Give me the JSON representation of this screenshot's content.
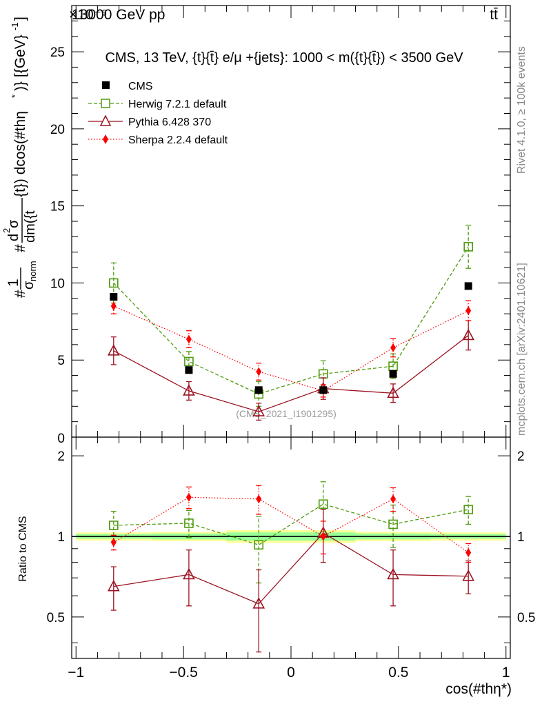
{
  "header": {
    "energy_label": "13000 GeV pp",
    "process_label": "tt̄",
    "exponent_label": "×10⁻⁶"
  },
  "side_labels": {
    "rivet": "Rivet 4.1.0, ≥ 100k events",
    "mcplots": "mcplots.cern.ch [arXiv:2401.10621]"
  },
  "chart_data": [
    {
      "type": "scatter",
      "title": "CMS, 13 TeV, {t}{t̄} e/μ +{jets}: 1000 < m({t}{t̄}) < 3500 GeV",
      "ylabel": "#1/σnorm #d²σ/dm({t}{t̄}) dcos(#thη*) [{GeV}⁻¹]",
      "ylabel_parts": {
        "hash1": "#",
        "one": "1",
        "sigma": "σ",
        "norm": "norm",
        "hash2": "#",
        "d": "d",
        "two": "2",
        "sigma2": "σ",
        "dm": "dm({t",
        "rest": "{t}) dcos(#thη",
        "star": "*",
        "unit": ")} [{GeV}",
        "exp": "-1",
        "close": "]"
      },
      "ylim": [
        0,
        28
      ],
      "xlim": [
        -1.02,
        1.02
      ],
      "y_ticks": [
        "5",
        "10",
        "15",
        "20",
        "25"
      ],
      "y_zero_label": "0",
      "watermark": "(CMS_2021_I1901295)",
      "x": [
        -0.825,
        -0.475,
        -0.15,
        0.15,
        0.475,
        0.825
      ],
      "series": [
        {
          "name": "CMS",
          "color": "#000000",
          "marker": "filled-square",
          "line": "none",
          "values": [
            9.1,
            4.35,
            3.05,
            3.05,
            4.1,
            9.8
          ]
        },
        {
          "name": "Herwig 7.2.1 default",
          "color": "#4f9a0e",
          "marker": "open-square",
          "line": "dashed",
          "values": [
            10.0,
            4.9,
            2.8,
            4.1,
            4.6,
            12.35
          ],
          "errors": [
            1.3,
            0.65,
            0.8,
            0.85,
            0.8,
            1.4
          ]
        },
        {
          "name": "Pythia 6.428 370",
          "color": "#9b1321",
          "marker": "open-triangle",
          "line": "solid",
          "values": [
            5.6,
            3.0,
            1.65,
            3.15,
            2.85,
            6.6
          ],
          "errors": [
            0.9,
            0.6,
            0.55,
            0.7,
            0.6,
            0.95
          ]
        },
        {
          "name": "Sherpa 2.2.4 default",
          "color": "#ff0000",
          "marker": "filled-diamond",
          "line": "dotted",
          "values": [
            8.5,
            6.35,
            4.25,
            3.0,
            5.8,
            8.2
          ],
          "errors": [
            0.5,
            0.55,
            0.55,
            0.4,
            0.6,
            0.65
          ]
        }
      ]
    },
    {
      "type": "scatter",
      "title": "",
      "xlabel": "cos(#thη*)",
      "ylabel": "Ratio to CMS",
      "ylim": [
        0.35,
        2.35
      ],
      "xlim": [
        -1.02,
        1.02
      ],
      "x_ticks": [
        "−1",
        "−0.5",
        "0",
        "0.5",
        "1"
      ],
      "y_ticks": [
        "0.5",
        "1",
        "2"
      ],
      "x": [
        -0.825,
        -0.475,
        -0.15,
        0.15,
        0.475,
        0.825
      ],
      "series": [
        {
          "name": "Herwig 7.2.1 default",
          "color": "#4f9a0e",
          "values": [
            1.1,
            1.12,
            0.93,
            1.32,
            1.11,
            1.26
          ],
          "errors": [
            0.14,
            0.13,
            0.26,
            0.28,
            0.2,
            0.15
          ]
        },
        {
          "name": "Pythia 6.428 370",
          "color": "#9b1321",
          "values": [
            0.65,
            0.72,
            0.56,
            1.03,
            0.72,
            0.71
          ],
          "errors": [
            0.12,
            0.17,
            0.19,
            0.23,
            0.17,
            0.1
          ]
        },
        {
          "name": "Sherpa 2.2.4 default",
          "color": "#ff0000",
          "values": [
            0.95,
            1.4,
            1.38,
            1.0,
            1.38,
            0.87
          ],
          "errors": [
            0.06,
            0.13,
            0.17,
            0.14,
            0.14,
            0.07
          ]
        }
      ],
      "bands": [
        {
          "xmin": -1.0,
          "xmax": -0.65,
          "yellow": [
            0.965,
            1.035
          ],
          "green": [
            0.98,
            1.02
          ]
        },
        {
          "xmin": -0.65,
          "xmax": -0.3,
          "yellow": [
            0.96,
            1.04
          ],
          "green": [
            0.975,
            1.025
          ]
        },
        {
          "xmin": -0.3,
          "xmax": 0.0,
          "yellow": [
            0.945,
            1.055
          ],
          "green": [
            0.965,
            1.035
          ]
        },
        {
          "xmin": 0.0,
          "xmax": 0.3,
          "yellow": [
            0.945,
            1.055
          ],
          "green": [
            0.965,
            1.035
          ]
        },
        {
          "xmin": 0.3,
          "xmax": 0.65,
          "yellow": [
            0.96,
            1.04
          ],
          "green": [
            0.975,
            1.025
          ]
        },
        {
          "xmin": 0.65,
          "xmax": 1.0,
          "yellow": [
            0.965,
            1.035
          ],
          "green": [
            0.98,
            1.02
          ]
        }
      ]
    }
  ]
}
